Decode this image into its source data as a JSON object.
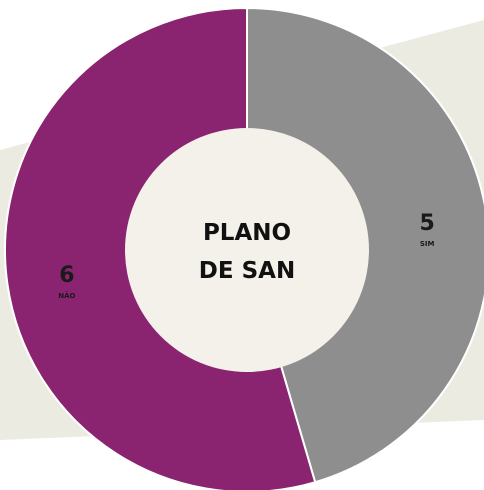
{
  "chart_data": {
    "type": "pie",
    "donut": true,
    "title": "",
    "center_label": [
      "PLANO",
      "DE SAN"
    ],
    "slices": [
      {
        "label": "SIM",
        "value": 5,
        "color": "#8e8e8e"
      },
      {
        "label": "NÃO",
        "value": 6,
        "color": "#8b2470"
      }
    ]
  },
  "colors": {
    "background": "#ecebe2",
    "center": "#f3f1ea",
    "separator": "#ffffff"
  }
}
